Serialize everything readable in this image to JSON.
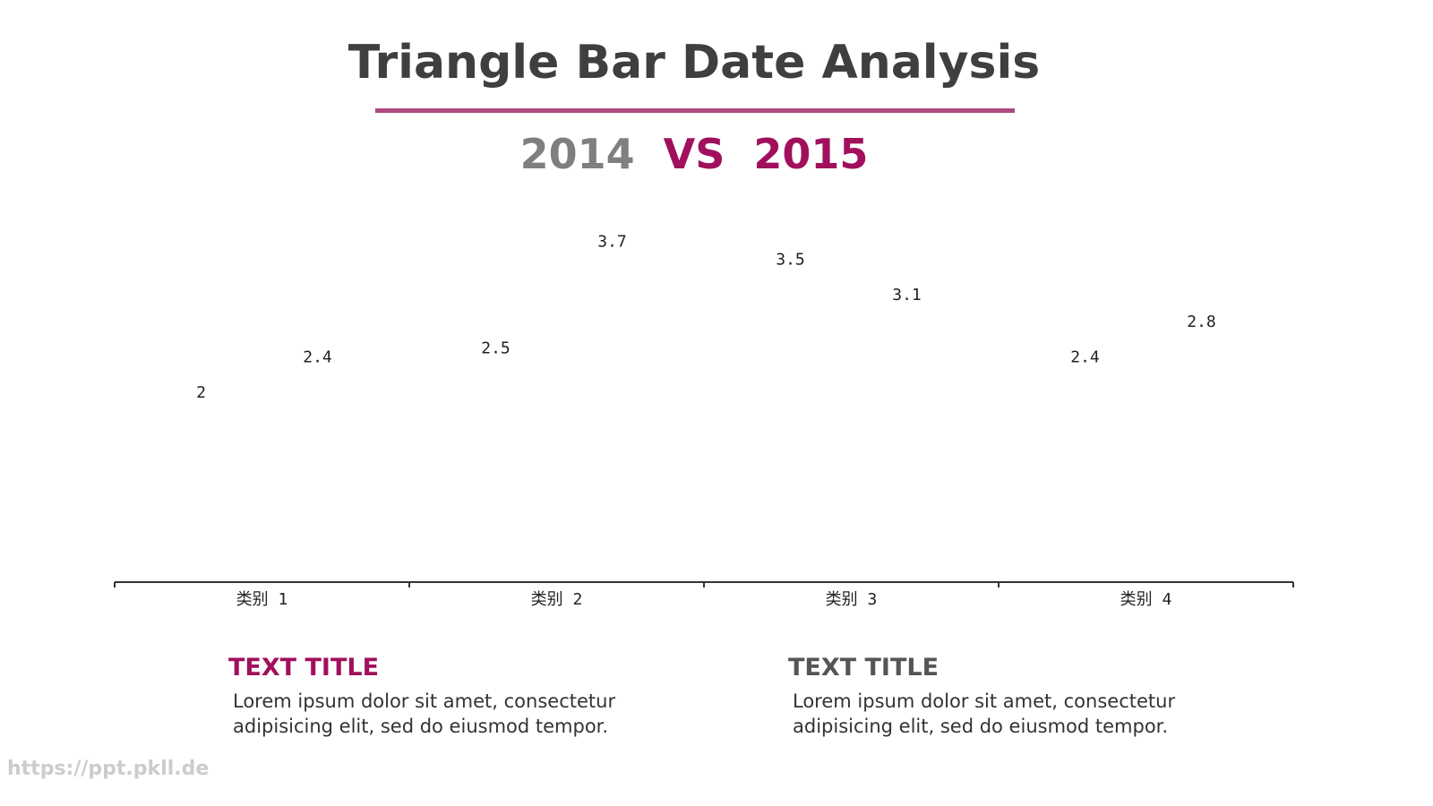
{
  "chart_data": {
    "type": "triangle-bar",
    "title": "Triangle Bar Date Analysis",
    "subtitle_vs": "VS",
    "categories": [
      "类别 1",
      "类别 2",
      "类别 3",
      "类别 4"
    ],
    "series": [
      {
        "name": "2014",
        "color": "#7f7f7f",
        "values": [
          2,
          2.5,
          3.5,
          2.4
        ]
      },
      {
        "name": "2015",
        "color": "#a0105c",
        "values": [
          2.4,
          3.7,
          3.1,
          2.8
        ]
      }
    ]
  },
  "blocks": [
    {
      "title": "TEXT TITLE",
      "text": "Lorem ipsum dolor sit amet, consectetur adipisicing elit, sed do eiusmod tempor."
    },
    {
      "title": "TEXT TITLE",
      "text": "Lorem ipsum dolor sit amet, consectetur adipisicing elit, sed do eiusmod tempor."
    }
  ],
  "footer": "https://ppt.pkll.de"
}
